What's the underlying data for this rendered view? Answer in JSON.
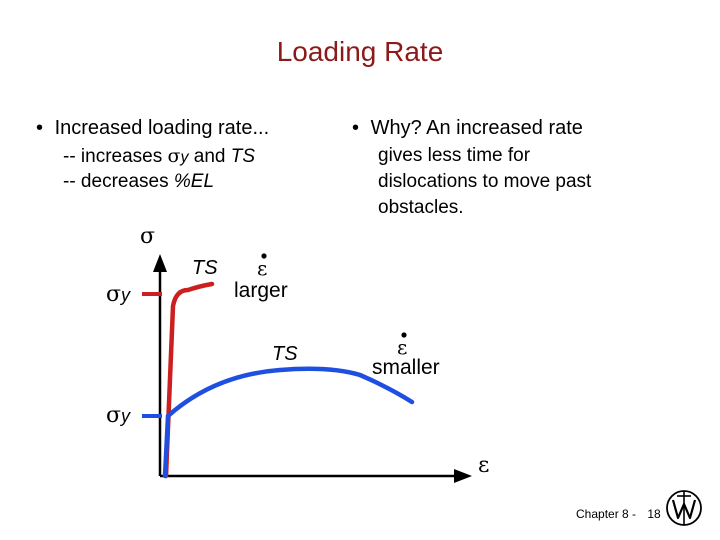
{
  "title": "Loading Rate",
  "left": {
    "bullet": "•",
    "heading": "Increased loading rate...",
    "line1_prefix": "-- increases ",
    "line1_sigma": "σ",
    "line1_sub": "y",
    "line1_mid": " and ",
    "line1_ts": "TS",
    "line2_prefix": "-- decreases ",
    "line2_el": "%EL"
  },
  "right": {
    "bullet": "•",
    "line1": "Why?  An increased rate",
    "line2": "gives less time for",
    "line3": "dislocations to move past",
    "line4": "obstacles."
  },
  "diagram": {
    "y_axis_symbol": "σ",
    "x_axis_symbol": "ε",
    "sigma_y_upper": "σ",
    "sigma_y_upper_sub": "y",
    "sigma_y_lower": "σ",
    "sigma_y_lower_sub": "y",
    "ts_upper": "TS",
    "ts_lower": "TS",
    "rate_symbol": "ε",
    "larger_label": "larger",
    "smaller_label": "smaller",
    "red_color": "#cc1f1f",
    "blue_color": "#1f4fe0"
  },
  "footer": {
    "chapter": "Chapter 8 -",
    "page": "18"
  }
}
